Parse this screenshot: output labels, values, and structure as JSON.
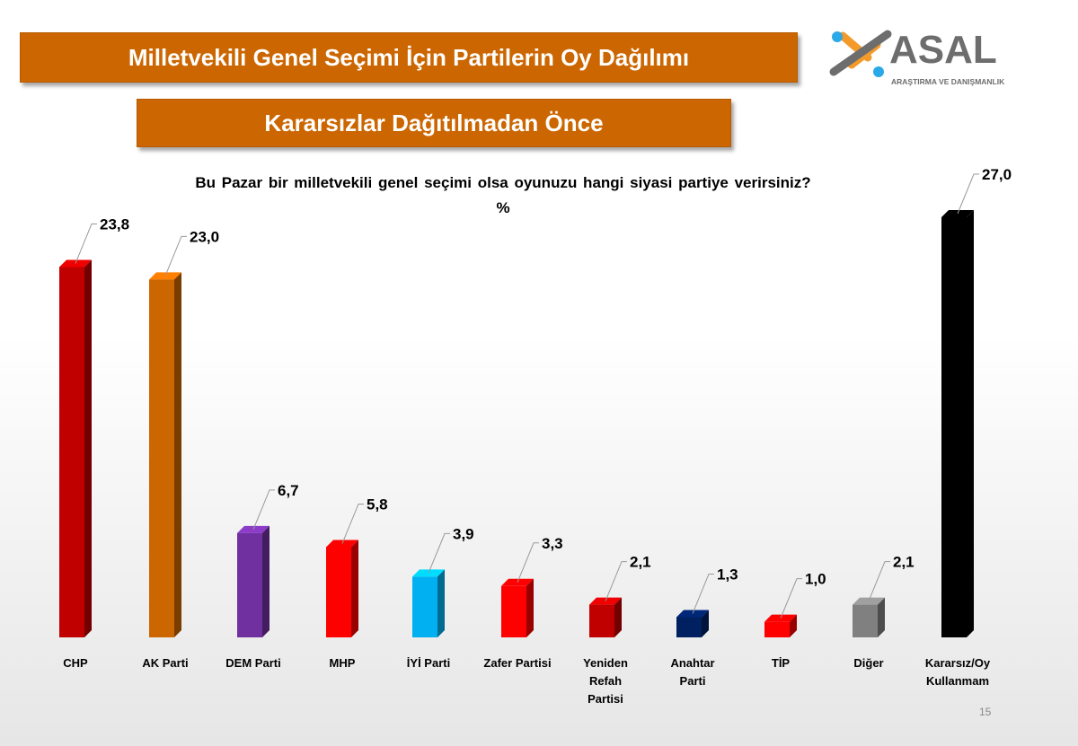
{
  "header": {
    "title": "Milletvekili Genel Seçimi İçin Partilerin Oy Dağılımı",
    "subtitle": "Kararsızlar Dağıtılmadan Önce",
    "banner_color": "#cc6600"
  },
  "logo": {
    "text": "ASAL",
    "tagline": "ARAŞTIRMA VE DANIŞMANLIK",
    "colors": [
      "#2aa8e8",
      "#f39a2b",
      "#6d6d6d"
    ]
  },
  "chart_data": {
    "type": "bar",
    "title": "Bu Pazar bir milletvekili genel seçimi olsa oyunuzu hangi siyasi partiye verirsiniz?",
    "ylabel": "%",
    "categories": [
      "CHP",
      "AK Parti",
      "DEM Parti",
      "MHP",
      "İYİ Parti",
      "Zafer Partisi",
      "Yeniden Refah Partisi",
      "Anahtar Parti",
      "TİP",
      "Diğer",
      "Kararsız/Oy Kullanmam"
    ],
    "category_lines": [
      [
        "CHP"
      ],
      [
        "AK Parti"
      ],
      [
        "DEM Parti"
      ],
      [
        "MHP"
      ],
      [
        "İYİ Parti"
      ],
      [
        "Zafer Partisi"
      ],
      [
        "Yeniden",
        "Refah",
        "Partisi"
      ],
      [
        "Anahtar",
        "Parti"
      ],
      [
        "TİP"
      ],
      [
        "Diğer"
      ],
      [
        "Kararsız/Oy",
        "Kullanmam"
      ]
    ],
    "values": [
      23.8,
      23.0,
      6.7,
      5.8,
      3.9,
      3.3,
      2.1,
      1.3,
      1.0,
      2.1,
      27.0
    ],
    "value_labels": [
      "23,8",
      "23,0",
      "6,7",
      "5,8",
      "3,9",
      "3,3",
      "2,1",
      "1,3",
      "1,0",
      "2,1",
      "27,0"
    ],
    "colors": [
      "#c00000",
      "#cc6600",
      "#7030a0",
      "#ff0000",
      "#00b0f0",
      "#ff0000",
      "#c00000",
      "#002060",
      "#ff0000",
      "#808080",
      "#000000"
    ],
    "ylim": [
      0,
      27
    ],
    "grid": false,
    "legend": "none"
  },
  "footer": {
    "page_number": "15"
  }
}
